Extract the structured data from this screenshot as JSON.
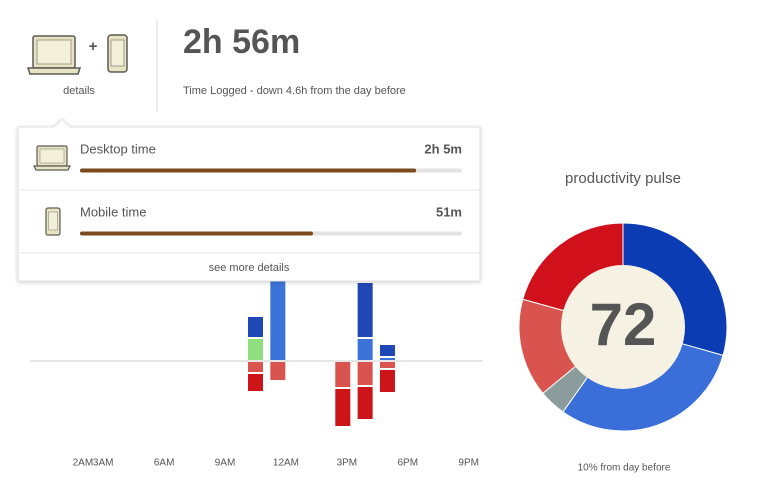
{
  "header": {
    "details": "details",
    "plus": "+",
    "total": "2h 56m",
    "caption": "Time Logged - down 4.6h from the day before"
  },
  "popup": {
    "xlim": [
      0,
      100
    ],
    "rows": [
      {
        "label": "Desktop time",
        "value": "2h 5m",
        "progress": 88,
        "color": "#7b4a1f"
      },
      {
        "label": "Mobile time",
        "value": "51m",
        "progress": 61,
        "color": "#7b4a1f"
      }
    ],
    "more": "see more details"
  },
  "chart_data": [
    {
      "type": "bar",
      "x": [
        10.5,
        11.6,
        14.8,
        15.9,
        17
      ],
      "series": [
        {
          "color": "#3b73d9",
          "values": [
            null,
            100,
            null,
            23,
            4
          ]
        },
        {
          "color": "#8fdf7e",
          "values": [
            23,
            null,
            null,
            null,
            null
          ]
        },
        {
          "color": "#1f47b5",
          "values": [
            22,
            null,
            null,
            56,
            13
          ]
        },
        {
          "color": "#d9534f",
          "values": [
            -12,
            -20,
            -27,
            -25,
            -8
          ]
        },
        {
          "color": "#cc1419",
          "values": [
            -19,
            null,
            -39,
            -34,
            -24
          ]
        }
      ],
      "xlim": [
        -1,
        22
      ],
      "ylim": [
        -90,
        110
      ],
      "xticks": [
        {
          "value": 2,
          "label": "2AM"
        },
        {
          "value": 3,
          "label": "3AM"
        },
        {
          "value": 6,
          "label": "6AM"
        },
        {
          "value": 9,
          "label": "9AM"
        },
        {
          "value": 12,
          "label": "12AM"
        },
        {
          "value": 15,
          "label": "3PM"
        },
        {
          "value": 18,
          "label": "6PM"
        },
        {
          "value": 21,
          "label": "9PM"
        }
      ]
    },
    {
      "type": "pie",
      "title": "productivity pulse",
      "score": 72,
      "note": "10% from day before",
      "values": [
        29.4,
        30.4,
        4.2,
        15.3,
        20.7
      ],
      "colors": [
        "#0b3cb3",
        "#3a6fd9",
        "#8a9c9c",
        "#d9534f",
        "#d0101a"
      ]
    }
  ]
}
